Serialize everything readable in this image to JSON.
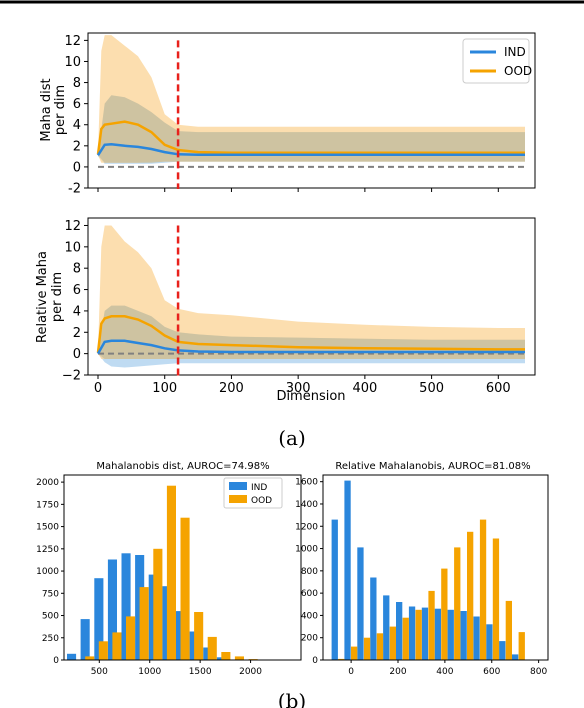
{
  "colors": {
    "ind": "#2a86dc",
    "ood": "#f5a300",
    "ind_band": "#a9cfee",
    "ood_band": "#fbd394",
    "overlap": "#c9bf9f",
    "vline": "#e8211c",
    "zero": "#808080"
  },
  "chart_data": [
    {
      "type": "line",
      "id": "a1",
      "ylabel": "Maha dist per dim",
      "xlabel": "",
      "xlim": [
        -15,
        655
      ],
      "ylim": [
        -2,
        12.7
      ],
      "yticks": [
        "-2",
        "0",
        "2",
        "4",
        "6",
        "8",
        "10",
        "12"
      ],
      "xticks": [],
      "vline_x": 120,
      "series": [
        {
          "name": "IND",
          "x": [
            0,
            10,
            20,
            40,
            60,
            80,
            100,
            120,
            150,
            200,
            300,
            400,
            500,
            600,
            640
          ],
          "y": [
            1.1,
            2.1,
            2.15,
            2.0,
            1.9,
            1.7,
            1.4,
            1.2,
            1.15,
            1.15,
            1.15,
            1.15,
            1.15,
            1.15,
            1.15
          ],
          "band_low": [
            1.0,
            0.3,
            0.3,
            0.3,
            0.3,
            0.3,
            0.4,
            0.5,
            0.5,
            0.5,
            0.5,
            0.5,
            0.5,
            0.5,
            0.5
          ],
          "band_high": [
            1.1,
            6.0,
            6.8,
            6.6,
            6.0,
            5.2,
            4.2,
            3.4,
            3.3,
            3.3,
            3.3,
            3.3,
            3.3,
            3.3,
            3.3
          ]
        },
        {
          "name": "OOD",
          "x": [
            0,
            5,
            10,
            20,
            40,
            60,
            80,
            100,
            120,
            150,
            200,
            300,
            400,
            500,
            600,
            640
          ],
          "y": [
            1.2,
            3.6,
            4.0,
            4.1,
            4.3,
            4.0,
            3.3,
            2.1,
            1.6,
            1.4,
            1.35,
            1.35,
            1.35,
            1.35,
            1.35,
            1.35
          ],
          "band_low": [
            1.1,
            0.4,
            0.4,
            0.4,
            0.4,
            0.4,
            0.5,
            0.5,
            0.5,
            0.5,
            0.5,
            0.5,
            0.5,
            0.5,
            0.5,
            0.5
          ],
          "band_high": [
            1.3,
            11.0,
            12.5,
            12.5,
            11.5,
            10.5,
            8.5,
            5.0,
            4.0,
            3.8,
            3.8,
            3.8,
            3.8,
            3.8,
            3.8,
            3.8
          ]
        }
      ]
    },
    {
      "type": "line",
      "id": "a2",
      "ylabel": "Relative Maha per dim",
      "xlabel": "Dimension",
      "xlim": [
        -15,
        655
      ],
      "ylim": [
        -2,
        12.7
      ],
      "yticks": [
        "−2",
        "0",
        "2",
        "4",
        "6",
        "8",
        "10",
        "12"
      ],
      "xticks": [
        "0",
        "100",
        "200",
        "300",
        "400",
        "500",
        "600"
      ],
      "vline_x": 120,
      "series": [
        {
          "name": "IND",
          "x": [
            0,
            10,
            20,
            40,
            60,
            80,
            100,
            120,
            150,
            200,
            300,
            400,
            500,
            600,
            640
          ],
          "y": [
            0.0,
            1.1,
            1.2,
            1.2,
            1.0,
            0.8,
            0.5,
            0.3,
            0.2,
            0.15,
            0.15,
            0.15,
            0.15,
            0.15,
            0.15
          ],
          "band_low": [
            0.0,
            -0.8,
            -1.2,
            -1.3,
            -1.2,
            -1.1,
            -1.0,
            -0.9,
            -0.9,
            -0.9,
            -0.9,
            -0.9,
            -0.9,
            -0.9,
            -0.9
          ],
          "band_high": [
            0.0,
            4.0,
            4.5,
            4.5,
            4.0,
            3.5,
            2.5,
            2.0,
            1.8,
            1.6,
            1.5,
            1.4,
            1.3,
            1.3,
            1.3
          ]
        },
        {
          "name": "OOD",
          "x": [
            0,
            5,
            10,
            20,
            40,
            60,
            80,
            100,
            120,
            150,
            200,
            300,
            400,
            500,
            600,
            640
          ],
          "y": [
            0.1,
            2.8,
            3.3,
            3.5,
            3.5,
            3.2,
            2.6,
            1.7,
            1.1,
            0.9,
            0.8,
            0.6,
            0.5,
            0.45,
            0.4,
            0.4
          ],
          "band_low": [
            0.0,
            -0.5,
            -0.5,
            -0.5,
            -0.5,
            -0.5,
            -0.5,
            -0.5,
            -0.5,
            -0.5,
            -0.5,
            -0.5,
            -0.5,
            -0.5,
            -0.5,
            -0.5
          ],
          "band_high": [
            0.2,
            10.0,
            12.0,
            12.0,
            10.5,
            9.5,
            8.0,
            5.0,
            4.2,
            3.8,
            3.6,
            3.0,
            2.7,
            2.5,
            2.4,
            2.4
          ]
        }
      ]
    },
    {
      "type": "bar",
      "id": "b1",
      "title": "Mahalanobis dist, AUROC=74.98%",
      "xlim": [
        150,
        2500
      ],
      "ylim": [
        0,
        2080
      ],
      "xticks": [
        "500",
        "1000",
        "1500",
        "2000"
      ],
      "yticks": [
        "0",
        "250",
        "500",
        "750",
        "1000",
        "1250",
        "1500",
        "1750",
        "2000"
      ],
      "bin_width": 90,
      "series": [
        {
          "name": "IND",
          "x": [
            225,
            360,
            495,
            630,
            765,
            900,
            1035,
            1170,
            1305,
            1440,
            1575,
            1710
          ],
          "values": [
            70,
            460,
            920,
            1130,
            1200,
            1180,
            960,
            830,
            550,
            320,
            140,
            30
          ]
        },
        {
          "name": "OOD",
          "x": [
            405,
            540,
            675,
            810,
            945,
            1080,
            1215,
            1350,
            1485,
            1620,
            1755,
            1890,
            2025
          ],
          "values": [
            40,
            210,
            310,
            490,
            820,
            1250,
            1960,
            1600,
            540,
            260,
            90,
            40,
            10
          ]
        }
      ]
    },
    {
      "type": "bar",
      "id": "b2",
      "title": "Relative Mahalanobis, AUROC=81.08%",
      "xlim": [
        -120,
        840
      ],
      "ylim": [
        0,
        1660
      ],
      "xticks": [
        "0",
        "200",
        "400",
        "600",
        "800"
      ],
      "yticks": [
        "0",
        "200",
        "400",
        "600",
        "800",
        "1000",
        "1200",
        "1400",
        "1600"
      ],
      "bin_width": 27,
      "series": [
        {
          "name": "IND",
          "x": [
            -70,
            -15,
            40,
            95,
            150,
            205,
            260,
            315,
            370,
            425,
            480,
            535,
            590,
            645,
            700
          ],
          "values": [
            1260,
            1610,
            1010,
            740,
            580,
            520,
            480,
            470,
            460,
            450,
            440,
            390,
            320,
            170,
            50
          ]
        },
        {
          "name": "OOD",
          "x": [
            -42,
            13,
            68,
            123,
            178,
            233,
            288,
            343,
            398,
            453,
            508,
            563,
            618,
            673,
            728
          ],
          "values": [
            10,
            120,
            200,
            240,
            300,
            380,
            450,
            620,
            820,
            1010,
            1150,
            1260,
            1090,
            530,
            250
          ]
        }
      ]
    }
  ],
  "legend_a": [
    "IND",
    "OOD"
  ],
  "legend_b": [
    "IND",
    "OOD"
  ],
  "caption_a": "(a)",
  "caption_b": "(b)"
}
